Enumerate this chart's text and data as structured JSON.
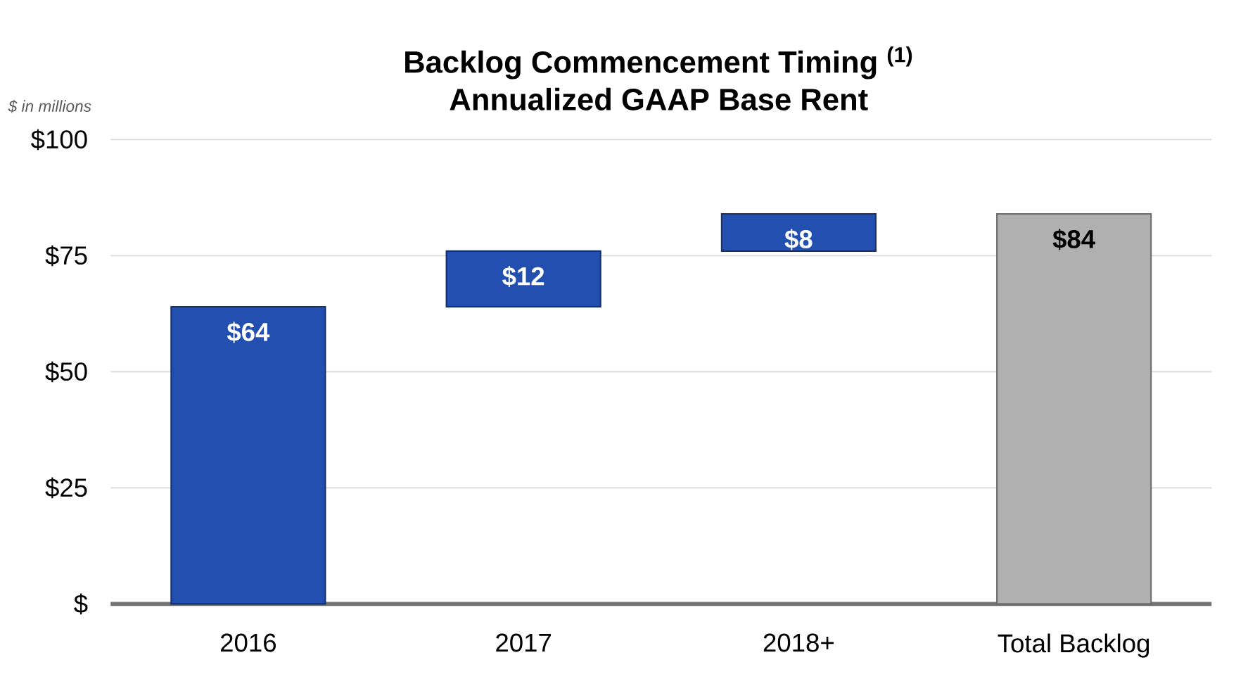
{
  "chart_data": {
    "type": "bar",
    "title": "Backlog Commencement Timing $^{(1)}$",
    "subtitle": "Annualized GAAP Base Rent",
    "ylabel": "$ in millions",
    "categories": [
      "2016",
      "2017",
      "2018+",
      "Total Backlog"
    ],
    "values": [
      64,
      12,
      8,
      84
    ],
    "base": [
      0,
      64,
      76,
      0
    ],
    "colors": [
      "#2350b0",
      "#2350b0",
      "#2350b0",
      "#b0b0b0"
    ],
    "value_labels": [
      "$64",
      "$12",
      "$8",
      "$84"
    ],
    "ylim": [
      0,
      100
    ],
    "yticks": [
      {
        "value": 0,
        "label": "$"
      },
      {
        "value": 25,
        "label": "$25"
      },
      {
        "value": 50,
        "label": "$50"
      },
      {
        "value": 75,
        "label": "$75"
      },
      {
        "value": 100,
        "label": "$100"
      }
    ],
    "grid": "y"
  }
}
